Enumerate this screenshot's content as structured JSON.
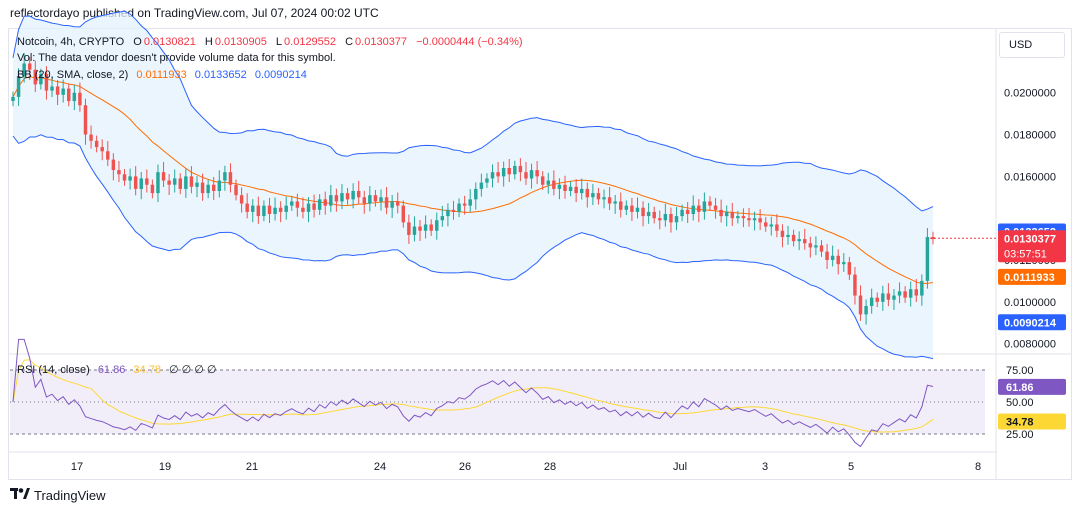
{
  "publisher": "reflectordayo published on TradingView.com, Jul 07, 2024 00:02 UTC",
  "footer": {
    "logo_text": "TradingView"
  },
  "currency": "USD",
  "legend": {
    "symbol": "Notcoin, 4h, CRYPTO",
    "o_label": "O",
    "o_value": "0.0130821",
    "h_label": "H",
    "h_value": "0.0130905",
    "l_label": "L",
    "l_value": "0.0129552",
    "c_label": "C",
    "c_value": "0.0130377",
    "change": "−0.0000444 (−0.34%)",
    "vol_note": "Vol: The data vendor doesn't provide volume data for this symbol.",
    "bb_label": "BB (20, SMA, close, 2)",
    "bb_basis": "0.0111933",
    "bb_upper": "0.0133652",
    "bb_lower": "0.0090214",
    "rsi_label": "RSI (14, close)",
    "rsi_value": "61.86",
    "rsi_ma": "34.78",
    "rsi_extra": "∅ ∅ ∅ ∅"
  },
  "colors": {
    "up": "#26a69a",
    "down": "#ef5350",
    "bb_band": "#2962ff",
    "bb_basis": "#ff6d00",
    "bb_fill": "#e3f2fd",
    "rsi_line": "#7e57c2",
    "rsi_ma": "#fdd835",
    "rsi_fill": "#ede7f6",
    "price_tag": "#f23645",
    "grid": "#f0f3fa"
  },
  "chart_data": {
    "type": "candlestick",
    "price_axis": {
      "ticks": [
        "0.0200000",
        "0.0180000",
        "0.0160000",
        "0.0120000",
        "0.0100000",
        "0.0080000"
      ],
      "range": [
        0.0076,
        0.023
      ]
    },
    "time_axis": {
      "ticks": [
        "17",
        "19",
        "21",
        "24",
        "26",
        "28",
        "Jul",
        "3",
        "5",
        "8"
      ]
    },
    "price_tags": {
      "upper": "0.0133652",
      "last": "0.0130377",
      "countdown": "03:57:51",
      "basis": "0.0111933",
      "lower": "0.0090214"
    },
    "closes": [
      0.0198,
      0.0208,
      0.0214,
      0.0211,
      0.0204,
      0.0209,
      0.0201,
      0.0203,
      0.0199,
      0.0202,
      0.0196,
      0.02,
      0.0194,
      0.018,
      0.0177,
      0.0174,
      0.0172,
      0.0168,
      0.0163,
      0.0161,
      0.0158,
      0.016,
      0.0154,
      0.0159,
      0.0156,
      0.0152,
      0.0162,
      0.0158,
      0.0156,
      0.0159,
      0.0154,
      0.016,
      0.0155,
      0.0157,
      0.0152,
      0.0156,
      0.0153,
      0.0158,
      0.0162,
      0.0156,
      0.0151,
      0.0147,
      0.0143,
      0.0146,
      0.0141,
      0.0146,
      0.0142,
      0.0145,
      0.0143,
      0.0146,
      0.0148,
      0.0145,
      0.0143,
      0.0147,
      0.0144,
      0.0149,
      0.0146,
      0.0151,
      0.0148,
      0.0152,
      0.0149,
      0.0153,
      0.015,
      0.0147,
      0.0151,
      0.0148,
      0.015,
      0.0145,
      0.0148,
      0.0146,
      0.0138,
      0.0132,
      0.0136,
      0.0134,
      0.0137,
      0.0134,
      0.0139,
      0.0141,
      0.0144,
      0.0143,
      0.0147,
      0.0146,
      0.0149,
      0.0154,
      0.0157,
      0.0159,
      0.0162,
      0.016,
      0.0164,
      0.0161,
      0.0165,
      0.0162,
      0.0159,
      0.0163,
      0.016,
      0.0156,
      0.0158,
      0.0154,
      0.0156,
      0.0153,
      0.0155,
      0.0152,
      0.0154,
      0.015,
      0.0152,
      0.0149,
      0.015,
      0.0147,
      0.0148,
      0.0144,
      0.0146,
      0.0143,
      0.0145,
      0.0141,
      0.0143,
      0.014,
      0.0139,
      0.0142,
      0.0138,
      0.0141,
      0.0144,
      0.0142,
      0.0146,
      0.0143,
      0.0148,
      0.0146,
      0.0144,
      0.0141,
      0.0143,
      0.014,
      0.0141,
      0.014,
      0.0139,
      0.014,
      0.0138,
      0.0136,
      0.0137,
      0.0134,
      0.0131,
      0.0132,
      0.0129,
      0.013,
      0.0128,
      0.0126,
      0.0127,
      0.0124,
      0.012,
      0.0122,
      0.0118,
      0.0119,
      0.0113,
      0.0103,
      0.0094,
      0.0098,
      0.0102,
      0.01,
      0.0104,
      0.0101,
      0.0103,
      0.0105,
      0.0102,
      0.0106,
      0.0103,
      0.011,
      0.0131,
      0.013
    ],
    "rsi": {
      "levels": [
        75,
        50,
        25
      ],
      "range": [
        14,
        86
      ]
    }
  }
}
